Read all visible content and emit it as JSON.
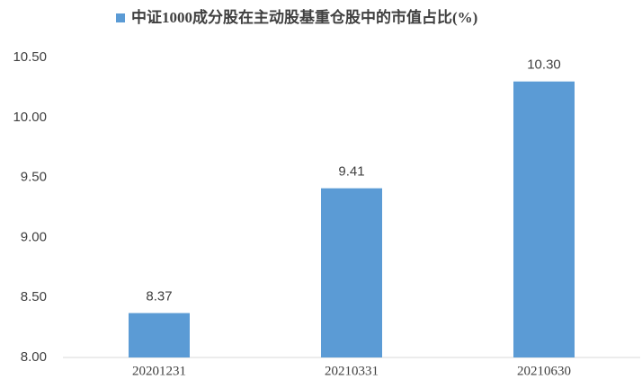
{
  "chart_data": {
    "type": "bar",
    "categories": [
      "20201231",
      "20210331",
      "20210630"
    ],
    "series": [
      {
        "name": "中证1000成分股在主动股基重仓股中的市值占比(%)",
        "color": "#5b9bd5",
        "values": [
          8.37,
          9.41,
          10.3
        ],
        "value_labels": [
          "8.37",
          "9.41",
          "10.30"
        ]
      }
    ],
    "ylim": [
      8,
      10.5
    ],
    "yticks": [
      {
        "value": 8,
        "label": "8.00"
      },
      {
        "value": 8.5,
        "label": "8.50"
      },
      {
        "value": 9,
        "label": "9.00"
      },
      {
        "value": 9.5,
        "label": "9.50"
      },
      {
        "value": 10,
        "label": "10.00"
      },
      {
        "value": 10.5,
        "label": "10.50"
      }
    ],
    "grid": false,
    "legend": "top"
  }
}
